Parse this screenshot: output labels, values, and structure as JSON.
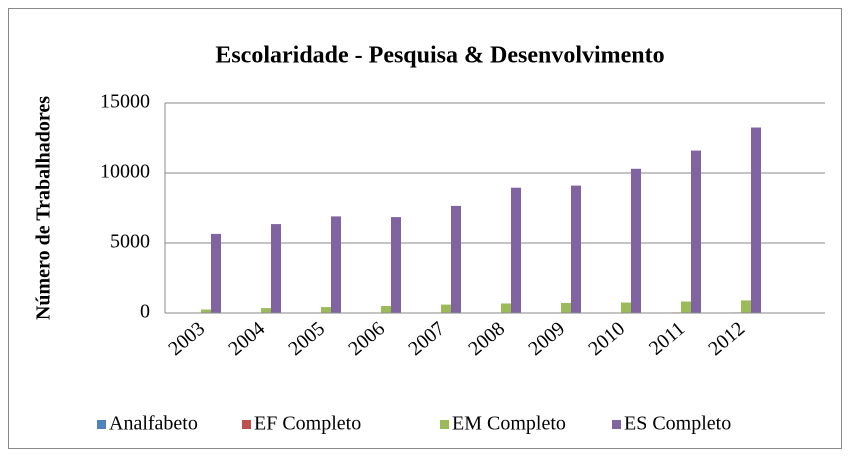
{
  "chart_data": {
    "type": "bar",
    "title": "Escolaridade - Pesquisa & Desenvolvimento",
    "y_label": "Número de Trabalhadores",
    "categories": [
      "2003",
      "2004",
      "2005",
      "2006",
      "2007",
      "2008",
      "2009",
      "2010",
      "2011",
      "2012",
      null
    ],
    "series": [
      {
        "name": "Analfabeto",
        "color": "#4f81bd",
        "values": [
          10,
          10,
          10,
          10,
          10,
          10,
          10,
          10,
          10,
          10,
          null
        ]
      },
      {
        "name": "EF Completo",
        "color": "#c0504d",
        "values": [
          30,
          30,
          30,
          30,
          30,
          30,
          30,
          30,
          40,
          40,
          null
        ]
      },
      {
        "name": "EM Completo",
        "color": "#9bbb59",
        "values": [
          250,
          350,
          420,
          500,
          600,
          680,
          720,
          750,
          820,
          900,
          null
        ]
      },
      {
        "name": "ES Completo",
        "color": "#8064a2",
        "values": [
          5650,
          6350,
          6900,
          6850,
          7650,
          8950,
          9100,
          10300,
          11600,
          13250,
          null
        ]
      }
    ],
    "ylim": [
      0,
      15000
    ],
    "yticks": [
      0,
      5000,
      10000,
      15000
    ],
    "grid": true,
    "legend": "bottom"
  }
}
